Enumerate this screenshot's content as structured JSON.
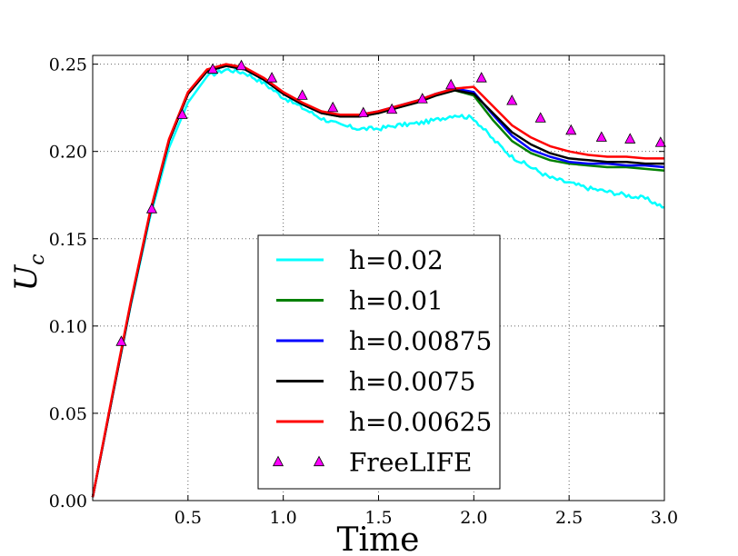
{
  "chart_data": {
    "type": "line",
    "title": "",
    "xlabel": "Time",
    "ylabel_main": "U",
    "ylabel_sub": "c",
    "xlim": [
      0.0,
      3.0
    ],
    "ylim": [
      0.0,
      0.255
    ],
    "grid": true,
    "legend_position": "center-bottom",
    "x_ticks": [
      0.5,
      1.0,
      1.5,
      2.0,
      2.5,
      3.0
    ],
    "x_tick_labels": [
      "0.5",
      "1.0",
      "1.5",
      "2.0",
      "2.5",
      "3.0"
    ],
    "y_ticks": [
      0.0,
      0.05,
      0.1,
      0.15,
      0.2,
      0.25
    ],
    "y_tick_labels": [
      "0.00",
      "0.05",
      "0.10",
      "0.15",
      "0.20",
      "0.25"
    ],
    "x": [
      0,
      0.1,
      0.2,
      0.3,
      0.4,
      0.5,
      0.6,
      0.7,
      0.8,
      0.9,
      1.0,
      1.1,
      1.2,
      1.3,
      1.4,
      1.5,
      1.6,
      1.7,
      1.8,
      1.9,
      2.0,
      2.1,
      2.2,
      2.3,
      2.4,
      2.5,
      2.6,
      2.7,
      2.8,
      2.9,
      3.0
    ],
    "series": [
      {
        "name": "h=0.02",
        "color": "#00ffff",
        "noisy": true,
        "values": [
          0.002,
          0.058,
          0.112,
          0.162,
          0.202,
          0.228,
          0.243,
          0.247,
          0.245,
          0.239,
          0.231,
          0.225,
          0.219,
          0.215,
          0.213,
          0.213,
          0.215,
          0.216,
          0.218,
          0.221,
          0.219,
          0.207,
          0.197,
          0.191,
          0.185,
          0.182,
          0.179,
          0.177,
          0.175,
          0.173,
          0.168
        ]
      },
      {
        "name": "h=0.01",
        "color": "#008000",
        "values": [
          0.002,
          0.058,
          0.113,
          0.164,
          0.206,
          0.233,
          0.246,
          0.249,
          0.247,
          0.241,
          0.233,
          0.227,
          0.222,
          0.22,
          0.22,
          0.222,
          0.225,
          0.228,
          0.232,
          0.235,
          0.232,
          0.218,
          0.206,
          0.199,
          0.195,
          0.193,
          0.192,
          0.191,
          0.191,
          0.19,
          0.189
        ]
      },
      {
        "name": "h=0.00875",
        "color": "#0000ff",
        "values": [
          0.002,
          0.058,
          0.113,
          0.164,
          0.206,
          0.233,
          0.246,
          0.249,
          0.247,
          0.241,
          0.233,
          0.227,
          0.222,
          0.221,
          0.221,
          0.223,
          0.226,
          0.229,
          0.233,
          0.236,
          0.234,
          0.221,
          0.209,
          0.201,
          0.197,
          0.194,
          0.193,
          0.193,
          0.192,
          0.192,
          0.191
        ]
      },
      {
        "name": "h=0.0075",
        "color": "#000000",
        "values": [
          0.002,
          0.058,
          0.113,
          0.164,
          0.206,
          0.233,
          0.246,
          0.249,
          0.247,
          0.241,
          0.233,
          0.227,
          0.222,
          0.22,
          0.22,
          0.222,
          0.225,
          0.228,
          0.232,
          0.235,
          0.233,
          0.222,
          0.211,
          0.204,
          0.199,
          0.196,
          0.195,
          0.194,
          0.194,
          0.193,
          0.193
        ]
      },
      {
        "name": "h=0.00625",
        "color": "#ff0000",
        "values": [
          0.002,
          0.059,
          0.114,
          0.165,
          0.207,
          0.234,
          0.247,
          0.25,
          0.248,
          0.242,
          0.234,
          0.228,
          0.223,
          0.221,
          0.221,
          0.223,
          0.226,
          0.229,
          0.233,
          0.236,
          0.237,
          0.226,
          0.215,
          0.208,
          0.203,
          0.2,
          0.198,
          0.197,
          0.197,
          0.196,
          0.196
        ]
      }
    ],
    "markers": {
      "name": "FreeLIFE",
      "color": "#ff00ff",
      "x": [
        0.15,
        0.31,
        0.47,
        0.63,
        0.78,
        0.94,
        1.1,
        1.26,
        1.42,
        1.57,
        1.73,
        1.88,
        2.04,
        2.2,
        2.35,
        2.51,
        2.67,
        2.82,
        2.98
      ],
      "y": [
        0.091,
        0.167,
        0.221,
        0.247,
        0.249,
        0.242,
        0.232,
        0.225,
        0.222,
        0.224,
        0.23,
        0.238,
        0.242,
        0.229,
        0.219,
        0.212,
        0.208,
        0.207,
        0.205
      ]
    }
  }
}
